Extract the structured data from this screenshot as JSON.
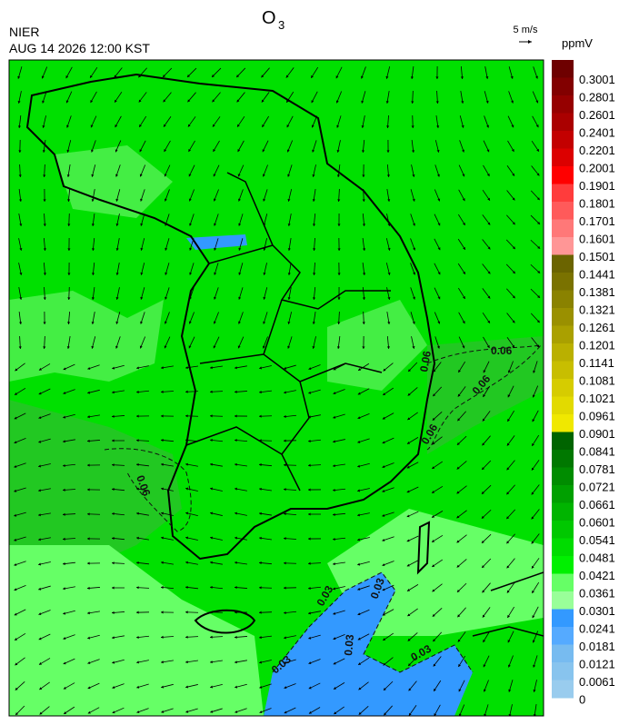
{
  "header": {
    "agency": "NIER",
    "datetime": "AUG 14 2026 12:00 KST",
    "title": "O",
    "title_sub": "3",
    "wind_scale": "5 m/s"
  },
  "legend": {
    "unit": "ppmV",
    "levels": [
      0.3001,
      0.2801,
      0.2601,
      0.2401,
      0.2201,
      0.2001,
      0.1901,
      0.1801,
      0.1701,
      0.1601,
      0.1501,
      0.1441,
      0.1381,
      0.1321,
      0.1261,
      0.1201,
      0.1141,
      0.1081,
      0.1021,
      0.0961,
      0.0901,
      0.0841,
      0.0781,
      0.0721,
      0.0661,
      0.0601,
      0.0541,
      0.0481,
      0.0421,
      0.0361,
      0.0301,
      0.0241,
      0.0181,
      0.0121,
      0.0061,
      0
    ],
    "colors": [
      "#6e0000",
      "#820000",
      "#960000",
      "#aa0000",
      "#c30000",
      "#dc0000",
      "#ff0000",
      "#ff3c3c",
      "#ff5a5a",
      "#ff7878",
      "#ff9696",
      "#6b6400",
      "#7a7200",
      "#8a8200",
      "#9a9000",
      "#aaa000",
      "#bab000",
      "#c8be00",
      "#d6cc00",
      "#e2da00",
      "#f0e800",
      "#006400",
      "#007800",
      "#008c00",
      "#00a000",
      "#00b400",
      "#00c800",
      "#00dc00",
      "#00f000",
      "#66ff66",
      "#99ff99",
      "#3399ff",
      "#55aaff",
      "#77bbf0",
      "#88c4ee",
      "#99ccee"
    ]
  },
  "contours": [
    "0.06",
    "0.06",
    "0.06",
    "0.06",
    "0.06",
    "0.03",
    "0.03",
    "0.03",
    "0.03",
    "0.03"
  ]
}
